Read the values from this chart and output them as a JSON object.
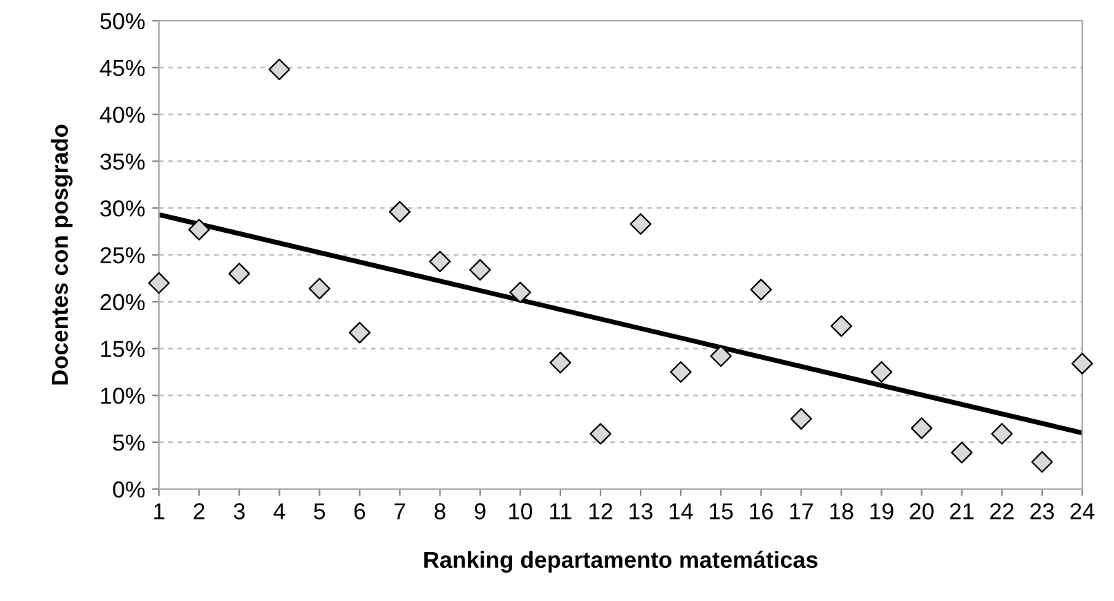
{
  "chart_data": {
    "type": "scatter",
    "xlabel": "Ranking departamento matemáticas",
    "ylabel": "Docentes con posgrado",
    "xlim": [
      1,
      24
    ],
    "xticks": [
      1,
      2,
      3,
      4,
      5,
      6,
      7,
      8,
      9,
      10,
      11,
      12,
      13,
      14,
      15,
      16,
      17,
      18,
      19,
      20,
      21,
      22,
      23,
      24
    ],
    "ylim": [
      0,
      50
    ],
    "yticks": [
      {
        "value": 0,
        "label": "0%"
      },
      {
        "value": 5,
        "label": "5%"
      },
      {
        "value": 10,
        "label": "10%"
      },
      {
        "value": 15,
        "label": "15%"
      },
      {
        "value": 20,
        "label": "20%"
      },
      {
        "value": 25,
        "label": "25%"
      },
      {
        "value": 30,
        "label": "30%"
      },
      {
        "value": 35,
        "label": "35%"
      },
      {
        "value": 40,
        "label": "40%"
      },
      {
        "value": 45,
        "label": "45%"
      },
      {
        "value": 50,
        "label": "50%"
      }
    ],
    "grid": "y",
    "marker": "diamond",
    "series": [
      {
        "color": "#d9d9d9",
        "x": [
          1,
          2,
          3,
          4,
          5,
          6,
          7,
          8,
          9,
          10,
          11,
          12,
          13,
          14,
          15,
          16,
          17,
          18,
          19,
          20,
          21,
          22,
          23,
          24
        ],
        "values": [
          22,
          27.7,
          23,
          44.8,
          21.4,
          16.7,
          29.6,
          24.3,
          23.4,
          21,
          13.5,
          5.9,
          28.3,
          12.5,
          14.2,
          21.3,
          7.5,
          17.4,
          12.5,
          6.5,
          3.9,
          5.9,
          2.9,
          13.4
        ]
      },
      {
        "type": "line",
        "color": "#000000",
        "line_style": "solid",
        "marker": "none",
        "x": [
          1,
          24
        ],
        "values": [
          29.3,
          6
        ]
      }
    ]
  }
}
